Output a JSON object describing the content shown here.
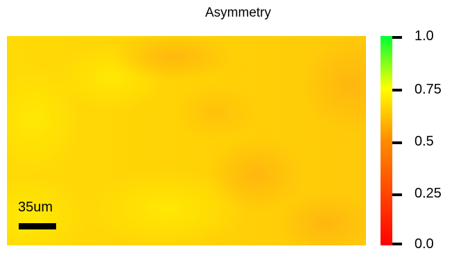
{
  "title": "Asymmetry",
  "scale_bar": {
    "label": "35um"
  },
  "colorbar": {
    "colors": [
      "#ff0000",
      "#ff8000",
      "#ffff00",
      "#00ff33"
    ],
    "ticks": [
      {
        "value": 1.0,
        "label": "1.0"
      },
      {
        "value": 0.75,
        "label": "0.75"
      },
      {
        "value": 0.5,
        "label": "0.5"
      },
      {
        "value": 0.25,
        "label": "0.25"
      },
      {
        "value": 0.0,
        "label": "0.0"
      }
    ]
  },
  "map": {
    "base_color": "#ffd305",
    "highlight_color": "#ffe605",
    "shadow_color": "#ffb80d"
  }
}
